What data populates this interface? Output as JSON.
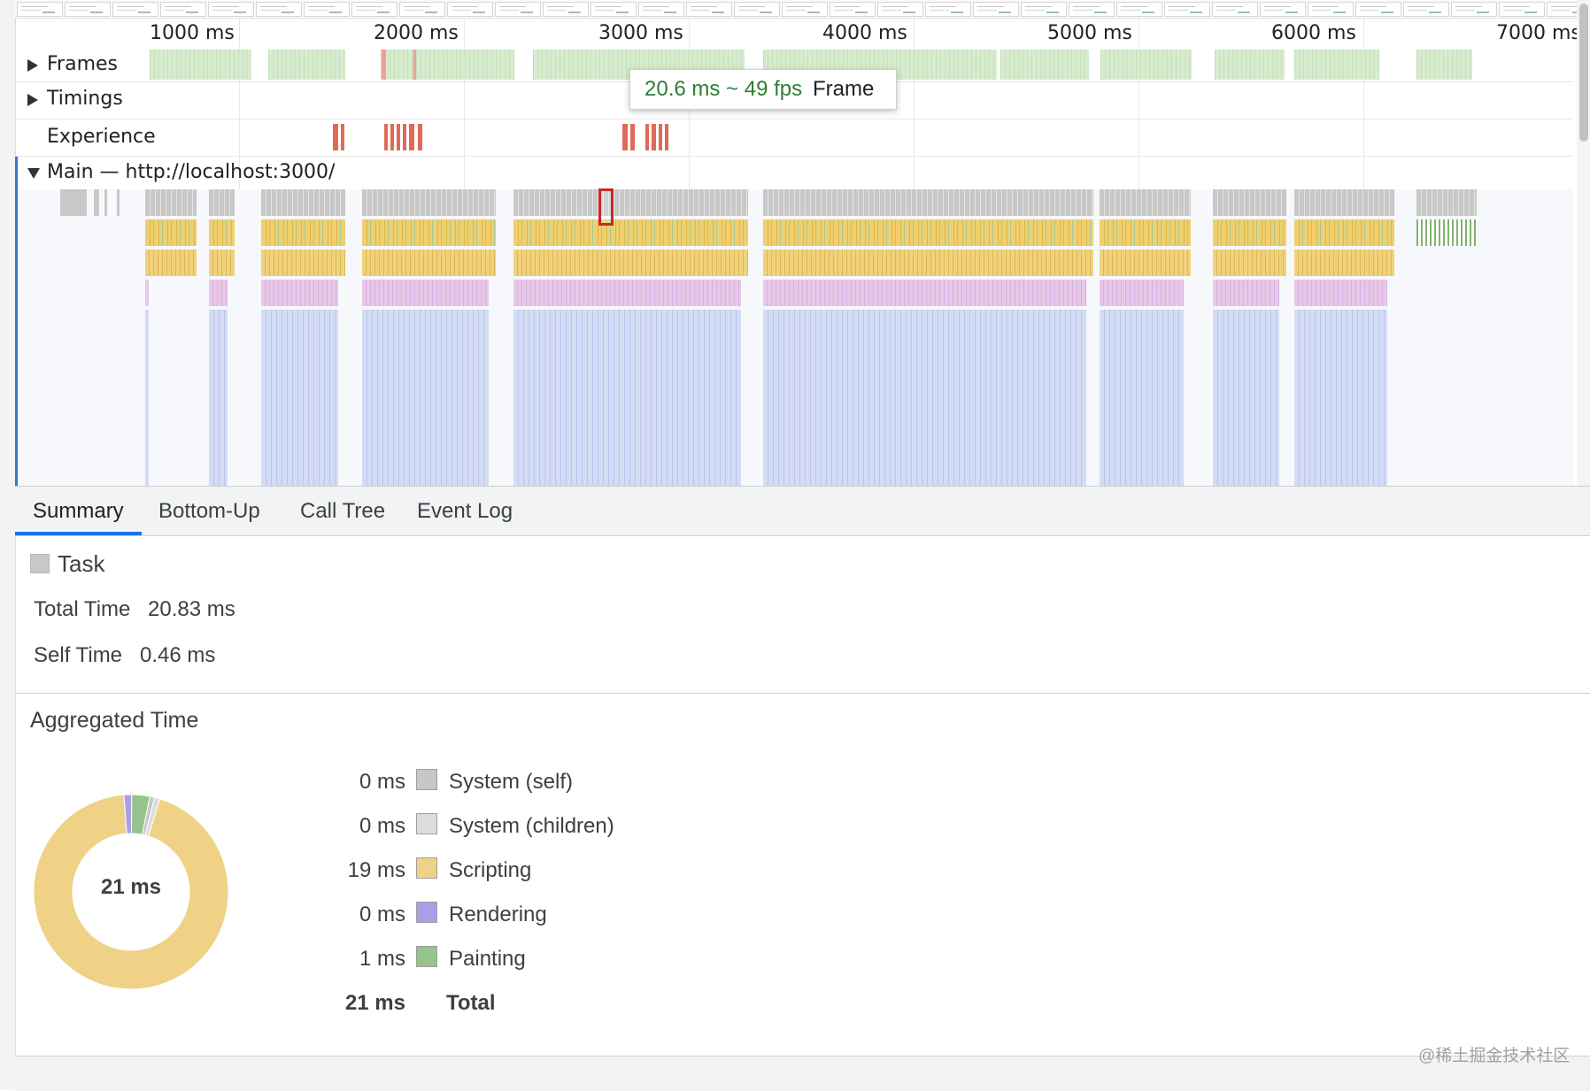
{
  "timeline": {
    "ruler_ticks": [
      "1000 ms",
      "2000 ms",
      "3000 ms",
      "4000 ms",
      "5000 ms",
      "6000 ms",
      "7000 ms"
    ]
  },
  "tracks": {
    "frames_label": "Frames",
    "timings_label": "Timings",
    "experience_label": "Experience",
    "main_label": "Main — http://localhost:3000/"
  },
  "tooltip": {
    "fps_text": "20.6 ms ~ 49 fps",
    "kind_text": "Frame"
  },
  "tabs": [
    {
      "label": "Summary",
      "active": true
    },
    {
      "label": "Bottom-Up",
      "active": false
    },
    {
      "label": "Call Tree",
      "active": false
    },
    {
      "label": "Event Log",
      "active": false
    }
  ],
  "summary": {
    "event_name": "Task",
    "event_color": "#c8c8c8",
    "total_time_label": "Total Time",
    "total_time_value": "20.83 ms",
    "self_time_label": "Self Time",
    "self_time_value": "0.46 ms"
  },
  "aggregated": {
    "title": "Aggregated Time",
    "center_label": "21 ms",
    "items": [
      {
        "value_label": "0 ms",
        "name": "System (self)",
        "color": "#c7c7c7",
        "ms": 0.16
      },
      {
        "value_label": "0 ms",
        "name": "System (children)",
        "color": "#dddddd",
        "ms": 0.18
      },
      {
        "value_label": "19 ms",
        "name": "Scripting",
        "color": "#efd286",
        "ms": 19.0
      },
      {
        "value_label": "0 ms",
        "name": "Rendering",
        "color": "#ab9ee8",
        "ms": 0.26
      },
      {
        "value_label": "1 ms",
        "name": "Painting",
        "color": "#96c48c",
        "ms": 0.6
      }
    ],
    "total_value_label": "21 ms",
    "total_label": "Total"
  },
  "watermark": "@稀土掘金技术社区"
}
